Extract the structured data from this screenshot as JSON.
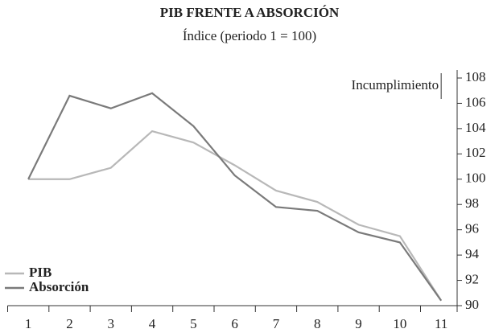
{
  "chart_data": {
    "type": "line",
    "title": "PIB FRENTE A ABSORCIÓN",
    "subtitle": "Índice (periodo 1 = 100)",
    "annotation": "Incumplimiento",
    "categories": [
      "1",
      "2",
      "3",
      "4",
      "5",
      "6",
      "7",
      "8",
      "9",
      "10",
      "11"
    ],
    "series": [
      {
        "name": "PIB",
        "color": "#b8b8b8",
        "values": [
          100,
          100,
          100.9,
          103.8,
          102.9,
          101.1,
          99.1,
          98.2,
          96.4,
          95.5,
          90.4
        ]
      },
      {
        "name": "Absorción",
        "color": "#7a7a7a",
        "values": [
          100,
          106.6,
          105.6,
          106.8,
          104.2,
          100.3,
          97.8,
          97.5,
          95.8,
          95.0,
          90.4
        ]
      }
    ],
    "ylim": [
      90,
      108
    ],
    "yticks": [
      90,
      92,
      94,
      96,
      98,
      100,
      102,
      104,
      106,
      108
    ],
    "legend": "bottom-left"
  }
}
